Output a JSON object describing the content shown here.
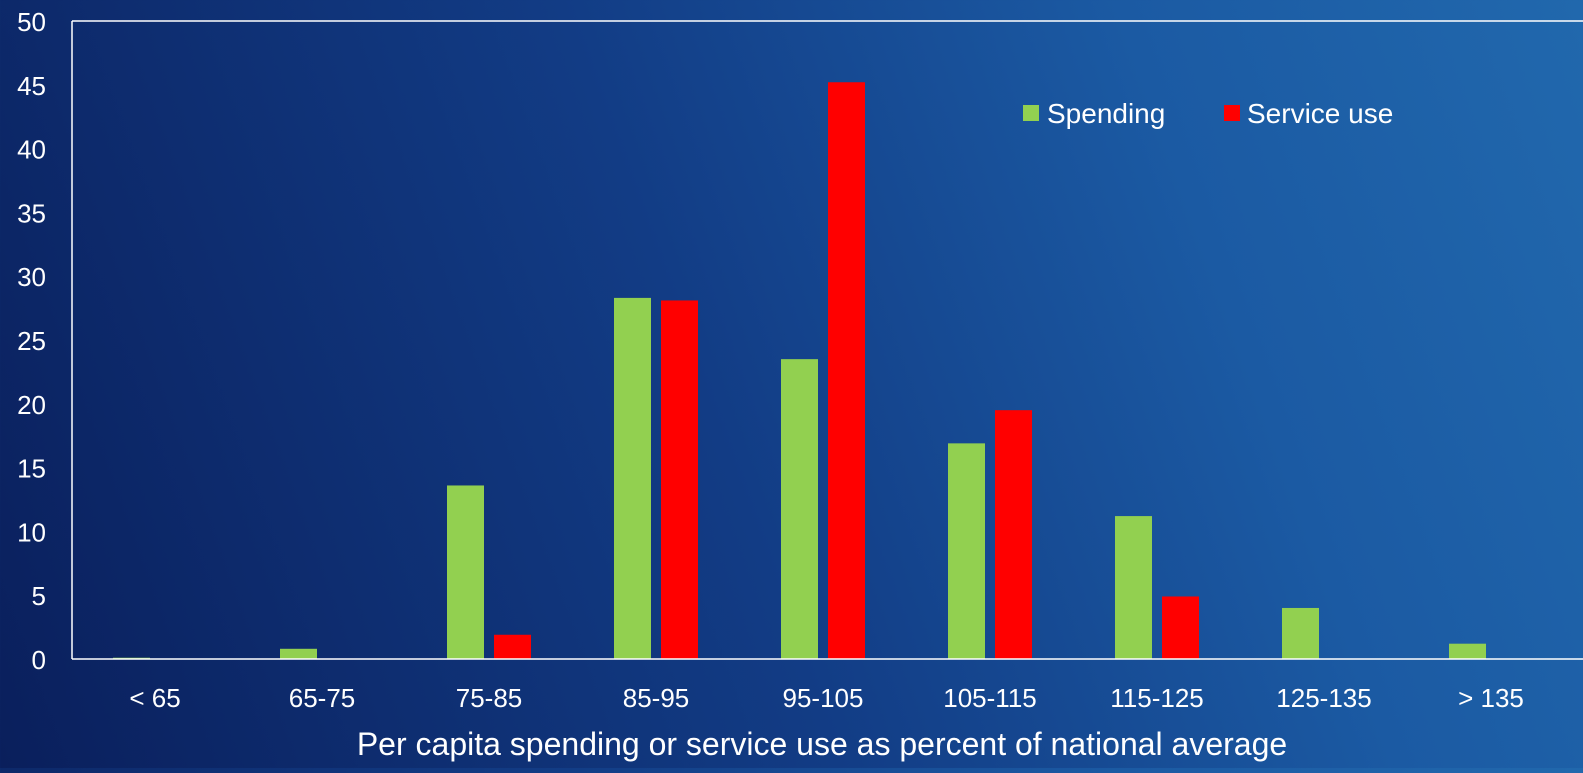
{
  "chart_data": {
    "type": "bar",
    "title": "",
    "xlabel": "Per capita spending or service use as percent of national average",
    "ylabel": "",
    "ylim": [
      0,
      50
    ],
    "yticks": [
      "0",
      "5",
      "10",
      "15",
      "20",
      "25",
      "30",
      "35",
      "40",
      "45",
      "50"
    ],
    "grid": false,
    "legend_position": "top-right",
    "categories": [
      "< 65",
      "65-75",
      "75-85",
      "85-95",
      "95-105",
      "105-115",
      "115-125",
      "125-135",
      "> 135"
    ],
    "series": [
      {
        "name": "Spending",
        "color": "#92d050",
        "values": [
          0.1,
          0.8,
          13.6,
          28.3,
          23.5,
          16.9,
          11.2,
          4.0,
          1.2
        ]
      },
      {
        "name": "Service use",
        "color": "#ff0000",
        "values": [
          0,
          0,
          1.9,
          28.1,
          45.2,
          19.5,
          4.9,
          0,
          0
        ]
      }
    ]
  }
}
